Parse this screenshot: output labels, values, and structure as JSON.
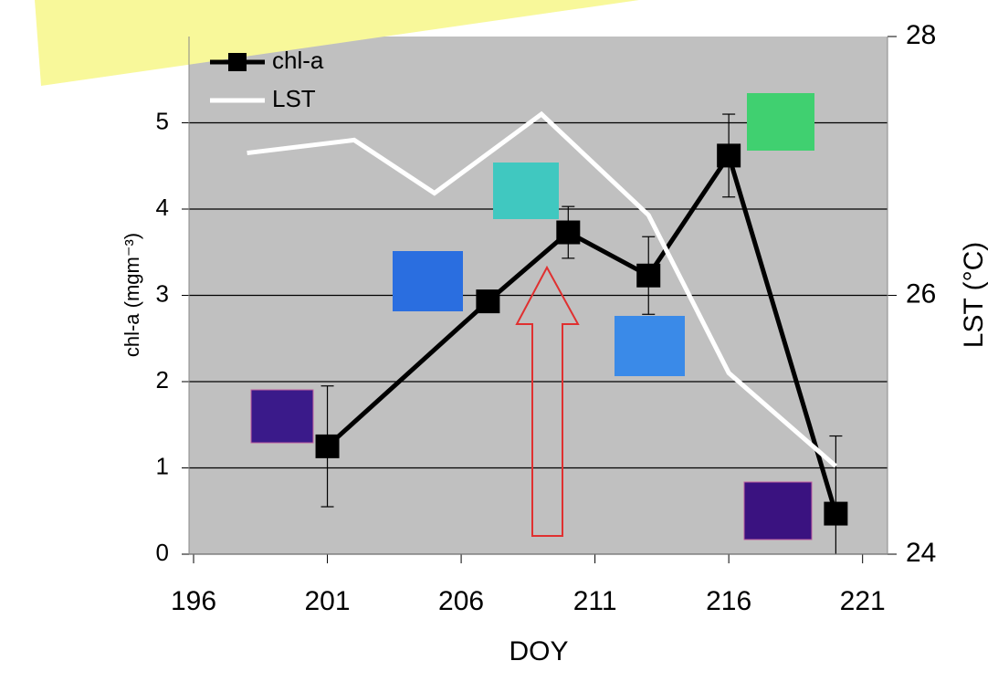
{
  "chart_data": {
    "type": "line",
    "x_label": "DOY",
    "y_label": "chl-a (mgm⁻³)",
    "y2_label": "LST (°C)",
    "xlim": [
      196,
      222
    ],
    "xticks": [
      196,
      201,
      206,
      211,
      216,
      221
    ],
    "ylim": [
      0,
      6
    ],
    "yticks": [
      0,
      1,
      2,
      3,
      4,
      5
    ],
    "y2lim": [
      24,
      28
    ],
    "y2ticks": [
      24,
      26,
      28
    ],
    "grid": true,
    "legend": "upper left",
    "series": [
      {
        "name": "chl-a",
        "color": "#000000",
        "marker": "square",
        "x": [
          201,
          207,
          210,
          213,
          216,
          220
        ],
        "values": [
          1.25,
          2.93,
          3.73,
          3.23,
          4.62,
          0.47
        ],
        "errors": [
          0.7,
          null,
          0.3,
          0.45,
          0.48,
          0.9
        ]
      },
      {
        "name": "LST",
        "color": "#ffffff",
        "axis": "y2",
        "x": [
          198,
          202,
          205,
          209,
          213,
          216,
          220
        ],
        "values": [
          27.1,
          27.2,
          26.79,
          27.4,
          26.62,
          25.4,
          24.68
        ]
      }
    ]
  }
}
